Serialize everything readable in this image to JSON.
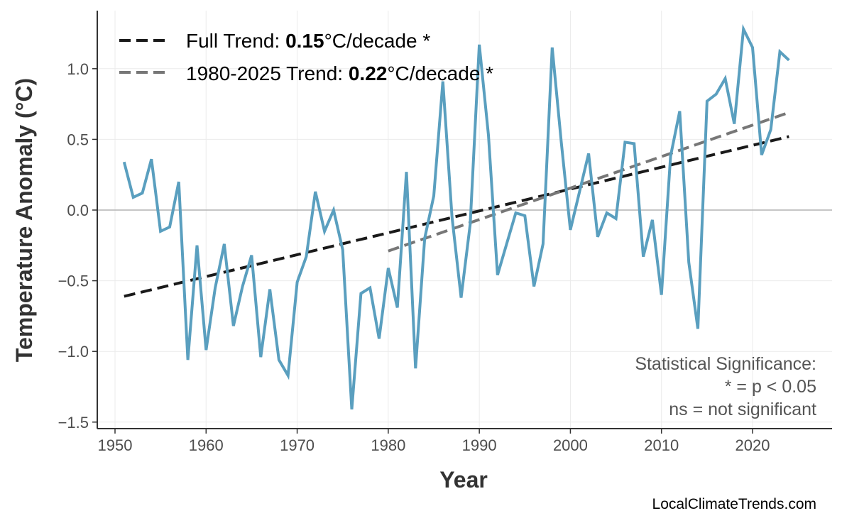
{
  "chart_data": {
    "type": "line",
    "title": "",
    "xlabel": "Year",
    "ylabel": "Temperature Anomaly (°C)",
    "xlim": [
      1945,
      2029
    ],
    "ylim": [
      -1.55,
      1.4
    ],
    "xticks": [
      1950,
      1960,
      1970,
      1980,
      1990,
      2000,
      2010,
      2020
    ],
    "yticks": [
      -1.5,
      -1.0,
      -0.5,
      0.0,
      0.5,
      1.0
    ],
    "ytick_labels": [
      "−1.5",
      "−1.0",
      "−0.5",
      "0.0",
      "0.5",
      "1.0"
    ],
    "grid": true,
    "legend_position": "top-left",
    "series": [
      {
        "color": "#5a9fbf",
        "x": [
          1951,
          1952,
          1953,
          1954,
          1955,
          1956,
          1957,
          1958,
          1959,
          1960,
          1961,
          1962,
          1963,
          1964,
          1965,
          1966,
          1967,
          1968,
          1969,
          1970,
          1971,
          1972,
          1973,
          1974,
          1975,
          1976,
          1977,
          1978,
          1979,
          1980,
          1981,
          1982,
          1983,
          1984,
          1985,
          1986,
          1987,
          1988,
          1989,
          1990,
          1991,
          1992,
          1993,
          1994,
          1995,
          1996,
          1997,
          1998,
          1999,
          2000,
          2001,
          2002,
          2003,
          2004,
          2005,
          2006,
          2007,
          2008,
          2009,
          2010,
          2011,
          2012,
          2013,
          2014,
          2015,
          2016,
          2017,
          2018,
          2019,
          2020,
          2021,
          2022,
          2023,
          2024
        ],
        "y": [
          0.34,
          0.09,
          0.12,
          0.36,
          -0.15,
          -0.12,
          0.2,
          -1.06,
          -0.25,
          -0.99,
          -0.55,
          -0.24,
          -0.82,
          -0.54,
          -0.32,
          -1.04,
          -0.56,
          -1.06,
          -1.17,
          -0.51,
          -0.33,
          0.13,
          -0.15,
          0.0,
          -0.28,
          -1.41,
          -0.59,
          -0.55,
          -0.91,
          -0.41,
          -0.69,
          0.27,
          -1.12,
          -0.2,
          0.1,
          0.91,
          -0.05,
          -0.62,
          -0.1,
          1.17,
          0.53,
          -0.46,
          -0.24,
          -0.02,
          -0.04,
          -0.54,
          -0.24,
          1.15,
          0.48,
          -0.14,
          0.13,
          0.4,
          -0.19,
          -0.02,
          -0.06,
          0.48,
          0.47,
          -0.33,
          -0.07,
          -0.6,
          0.38,
          0.7,
          -0.37,
          -0.84,
          0.77,
          0.82,
          0.93,
          0.61,
          1.28,
          1.15,
          0.39,
          0.57,
          1.12,
          1.06
        ]
      }
    ],
    "trends": [
      {
        "label": "Full Trend: ",
        "value": "0.15",
        "unit": "°C/decade *",
        "color": "#1a1a1a",
        "x": [
          1951,
          2024
        ],
        "y": [
          -0.61,
          0.52
        ]
      },
      {
        "label": "1980-2025 Trend: ",
        "value": "0.22",
        "unit": "°C/decade *",
        "color": "#777777",
        "x": [
          1980,
          2024
        ],
        "y": [
          -0.29,
          0.69
        ]
      }
    ],
    "annotation": [
      "Statistical Significance:",
      "* = p < 0.05",
      "ns = not significant"
    ],
    "watermark": "LocalClimateTrends.com"
  }
}
